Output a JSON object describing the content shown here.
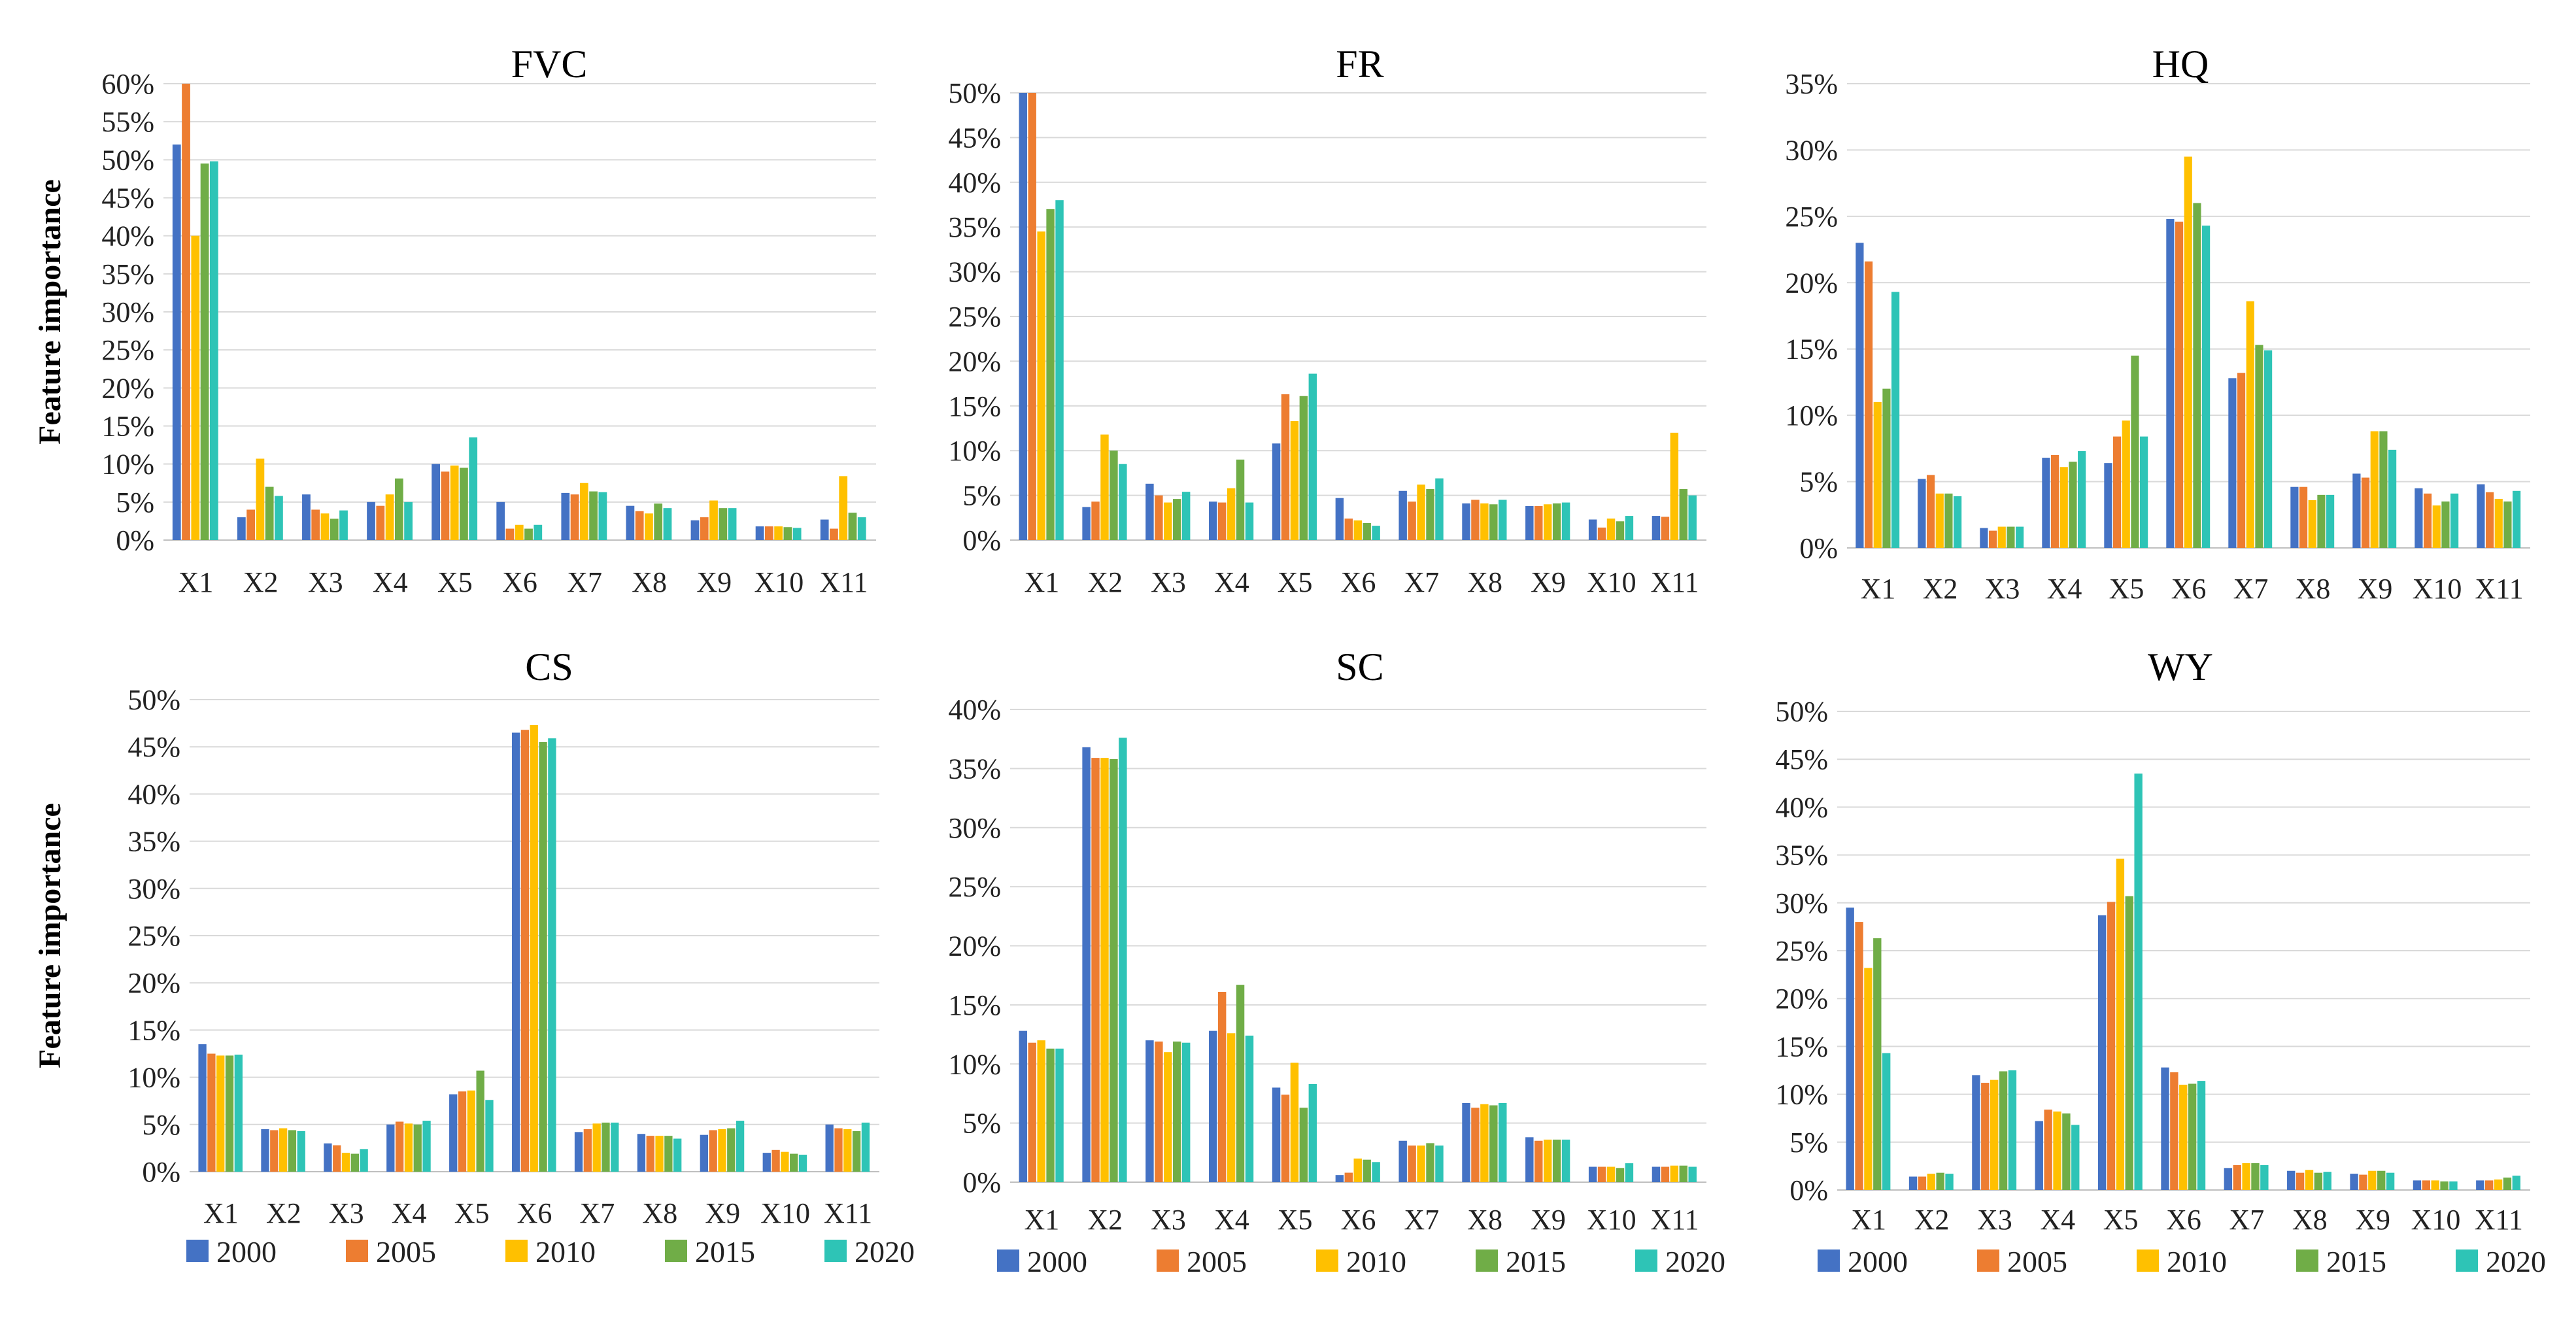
{
  "y_axis_label": "Feature importance",
  "legend": [
    {
      "name": "2000",
      "color": "#4472C4"
    },
    {
      "name": "2005",
      "color": "#ED7D31"
    },
    {
      "name": "2010",
      "color": "#FFC000"
    },
    {
      "name": "2015",
      "color": "#70AD47"
    },
    {
      "name": "2020",
      "color": "#2EC4B6"
    }
  ],
  "chart_data": [
    {
      "type": "bar",
      "title": "FVC",
      "ylabel": "Feature importance",
      "categories": [
        "X1",
        "X2",
        "X3",
        "X4",
        "X5",
        "X6",
        "X7",
        "X8",
        "X9",
        "X10",
        "X11"
      ],
      "ylim": [
        0,
        60
      ],
      "ticks": [
        "0%",
        "5%",
        "10%",
        "15%",
        "20%",
        "25%",
        "30%",
        "35%",
        "40%",
        "45%",
        "50%",
        "55%",
        "60%"
      ],
      "series": [
        {
          "name": "2000",
          "values": [
            52,
            3,
            6,
            5,
            10,
            5,
            6.2,
            4.5,
            2.6,
            1.8,
            2.7
          ]
        },
        {
          "name": "2005",
          "values": [
            60,
            4,
            4,
            4.5,
            9,
            1.5,
            6,
            3.8,
            3,
            1.8,
            1.5
          ]
        },
        {
          "name": "2010",
          "values": [
            40,
            10.7,
            3.5,
            6,
            9.8,
            2,
            7.5,
            3.5,
            5.2,
            1.8,
            8.4
          ]
        },
        {
          "name": "2015",
          "values": [
            49.5,
            7,
            2.8,
            8.1,
            9.5,
            1.5,
            6.4,
            4.8,
            4.2,
            1.7,
            3.6
          ]
        },
        {
          "name": "2020",
          "values": [
            49.8,
            5.8,
            3.9,
            5,
            13.5,
            2,
            6.3,
            4.2,
            4.2,
            1.6,
            3
          ]
        }
      ]
    },
    {
      "type": "bar",
      "title": "FR",
      "ylabel": "",
      "categories": [
        "X1",
        "X2",
        "X3",
        "X4",
        "X5",
        "X6",
        "X7",
        "X8",
        "X9",
        "X10",
        "X11"
      ],
      "ylim": [
        0,
        50
      ],
      "ticks": [
        "0%",
        "5%",
        "10%",
        "15%",
        "20%",
        "25%",
        "30%",
        "35%",
        "40%",
        "45%",
        "50%"
      ],
      "series": [
        {
          "name": "2000",
          "values": [
            50,
            3.7,
            6.3,
            4.3,
            10.8,
            4.7,
            5.5,
            4.1,
            3.8,
            2.3,
            2.7
          ]
        },
        {
          "name": "2005",
          "values": [
            50,
            4.3,
            5,
            4.2,
            16.3,
            2.4,
            4.3,
            4.5,
            3.8,
            1.4,
            2.6
          ]
        },
        {
          "name": "2010",
          "values": [
            34.5,
            11.8,
            4.2,
            5.8,
            13.3,
            2.2,
            6.2,
            4.1,
            4,
            2.4,
            12
          ]
        },
        {
          "name": "2015",
          "values": [
            37,
            10,
            4.6,
            9,
            16.1,
            1.9,
            5.7,
            4,
            4.1,
            2.1,
            5.7
          ]
        },
        {
          "name": "2020",
          "values": [
            38,
            8.5,
            5.4,
            4.2,
            18.6,
            1.6,
            6.9,
            4.5,
            4.2,
            2.7,
            5
          ]
        }
      ]
    },
    {
      "type": "bar",
      "title": "HQ",
      "ylabel": "",
      "categories": [
        "X1",
        "X2",
        "X3",
        "X4",
        "X5",
        "X6",
        "X7",
        "X8",
        "X9",
        "X10",
        "X11"
      ],
      "ylim": [
        0,
        35
      ],
      "ticks": [
        "0%",
        "5%",
        "10%",
        "15%",
        "20%",
        "25%",
        "30%",
        "35%"
      ],
      "series": [
        {
          "name": "2000",
          "values": [
            23,
            5.2,
            1.5,
            6.8,
            6.4,
            24.8,
            12.8,
            4.6,
            5.6,
            4.5,
            4.8
          ]
        },
        {
          "name": "2005",
          "values": [
            21.6,
            5.5,
            1.3,
            7,
            8.4,
            24.6,
            13.2,
            4.6,
            5.3,
            4.1,
            4.2
          ]
        },
        {
          "name": "2010",
          "values": [
            11,
            4.1,
            1.6,
            6.1,
            9.6,
            29.5,
            18.6,
            3.6,
            8.8,
            3.2,
            3.7
          ]
        },
        {
          "name": "2015",
          "values": [
            12,
            4.1,
            1.6,
            6.5,
            14.5,
            26,
            15.3,
            4,
            8.8,
            3.5,
            3.5
          ]
        },
        {
          "name": "2020",
          "values": [
            19.3,
            3.9,
            1.6,
            7.3,
            8.4,
            24.3,
            14.9,
            4,
            7.4,
            4.1,
            4.3
          ]
        }
      ]
    },
    {
      "type": "bar",
      "title": "CS",
      "ylabel": "Feature importance",
      "categories": [
        "X1",
        "X2",
        "X3",
        "X4",
        "X5",
        "X6",
        "X7",
        "X8",
        "X9",
        "X10",
        "X11"
      ],
      "ylim": [
        0,
        50
      ],
      "ticks": [
        "0%",
        "5%",
        "10%",
        "15%",
        "20%",
        "25%",
        "30%",
        "35%",
        "40%",
        "45%",
        "50%"
      ],
      "series": [
        {
          "name": "2000",
          "values": [
            13.5,
            4.5,
            3,
            5,
            8.2,
            46.5,
            4.2,
            4,
            3.9,
            2,
            5
          ]
        },
        {
          "name": "2005",
          "values": [
            12.5,
            4.4,
            2.8,
            5.3,
            8.5,
            46.8,
            4.5,
            3.8,
            4.4,
            2.3,
            4.6
          ]
        },
        {
          "name": "2010",
          "values": [
            12.3,
            4.6,
            2,
            5.1,
            8.6,
            47.3,
            5.1,
            3.8,
            4.5,
            2.1,
            4.5
          ]
        },
        {
          "name": "2015",
          "values": [
            12.3,
            4.4,
            1.9,
            5,
            10.7,
            45.5,
            5.2,
            3.8,
            4.6,
            1.9,
            4.3
          ]
        },
        {
          "name": "2020",
          "values": [
            12.4,
            4.3,
            2.4,
            5.4,
            7.6,
            45.9,
            5.2,
            3.5,
            5.4,
            1.8,
            5.2
          ]
        }
      ]
    },
    {
      "type": "bar",
      "title": "SC",
      "ylabel": "",
      "categories": [
        "X1",
        "X2",
        "X3",
        "X4",
        "X5",
        "X6",
        "X7",
        "X8",
        "X9",
        "X10",
        "X11"
      ],
      "ylim": [
        0,
        40
      ],
      "ticks": [
        "0%",
        "5%",
        "10%",
        "15%",
        "20%",
        "25%",
        "30%",
        "35%",
        "40%"
      ],
      "series": [
        {
          "name": "2000",
          "values": [
            12.8,
            36.8,
            12,
            12.8,
            8,
            0.6,
            3.5,
            6.7,
            3.8,
            1.3,
            1.3
          ]
        },
        {
          "name": "2005",
          "values": [
            11.8,
            35.9,
            11.9,
            16.1,
            7.4,
            0.8,
            3.1,
            6.3,
            3.5,
            1.3,
            1.3
          ]
        },
        {
          "name": "2010",
          "values": [
            12,
            35.9,
            11,
            12.6,
            10.1,
            2,
            3.1,
            6.6,
            3.6,
            1.3,
            1.4
          ]
        },
        {
          "name": "2015",
          "values": [
            11.3,
            35.8,
            11.9,
            16.7,
            6.3,
            1.9,
            3.3,
            6.5,
            3.6,
            1.2,
            1.4
          ]
        },
        {
          "name": "2020",
          "values": [
            11.3,
            37.6,
            11.8,
            12.4,
            8.3,
            1.7,
            3.1,
            6.7,
            3.6,
            1.6,
            1.3
          ]
        }
      ]
    },
    {
      "type": "bar",
      "title": "WY",
      "ylabel": "",
      "categories": [
        "X1",
        "X2",
        "X3",
        "X4",
        "X5",
        "X6",
        "X7",
        "X8",
        "X9",
        "X10",
        "X11"
      ],
      "ylim": [
        0,
        50
      ],
      "ticks": [
        "0%",
        "5%",
        "10%",
        "15%",
        "20%",
        "25%",
        "30%",
        "35%",
        "40%",
        "45%",
        "50%"
      ],
      "series": [
        {
          "name": "2000",
          "values": [
            29.5,
            1.4,
            12,
            7.2,
            28.7,
            12.8,
            2.3,
            2,
            1.7,
            1,
            1
          ]
        },
        {
          "name": "2005",
          "values": [
            28,
            1.4,
            11.2,
            8.4,
            30.1,
            12.3,
            2.6,
            1.8,
            1.6,
            1,
            1
          ]
        },
        {
          "name": "2010",
          "values": [
            23.2,
            1.7,
            11.5,
            8.2,
            34.6,
            11,
            2.8,
            2.1,
            2,
            1,
            1.1
          ]
        },
        {
          "name": "2015",
          "values": [
            26.3,
            1.8,
            12.4,
            8,
            30.7,
            11.1,
            2.8,
            1.8,
            2,
            0.9,
            1.3
          ]
        },
        {
          "name": "2020",
          "values": [
            14.3,
            1.7,
            12.5,
            6.8,
            43.5,
            11.4,
            2.6,
            1.9,
            1.8,
            0.9,
            1.5
          ]
        }
      ]
    }
  ]
}
